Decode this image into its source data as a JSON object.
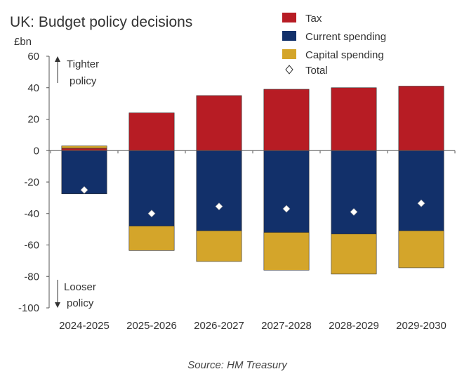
{
  "chart_data": {
    "type": "bar",
    "stacked": true,
    "title": "UK: Budget policy decisions",
    "unit_label": "£bn",
    "ylim": [
      -100,
      60
    ],
    "yticks": [
      60,
      40,
      20,
      0,
      -20,
      -40,
      -60,
      -80,
      -100
    ],
    "categories": [
      "2024-2025",
      "2025-2026",
      "2026-2027",
      "2027-2028",
      "2028-2029",
      "2029-2030"
    ],
    "series": [
      {
        "name": "Tax",
        "color": "#b71c24",
        "values": [
          1.5,
          24,
          35,
          39,
          40,
          41
        ]
      },
      {
        "name": "Current spending",
        "color": "#12306a",
        "values": [
          -27.5,
          -48,
          -51,
          -52,
          -53,
          -51
        ]
      },
      {
        "name": "Capital spending",
        "color": "#d4a52a",
        "values": [
          1.5,
          -15.5,
          -19.5,
          -24,
          -25.5,
          -23.5
        ]
      }
    ],
    "total": {
      "name": "Total",
      "marker": "diamond",
      "values": [
        -25,
        -40,
        -35.5,
        -37,
        -39,
        -33.5
      ]
    },
    "annotations": {
      "up_line1": "Tighter",
      "up_line2": "policy",
      "down_line1": "Looser",
      "down_line2": "policy"
    },
    "legend_position": "top-right",
    "grid": false,
    "source": "Source: HM Treasury"
  }
}
